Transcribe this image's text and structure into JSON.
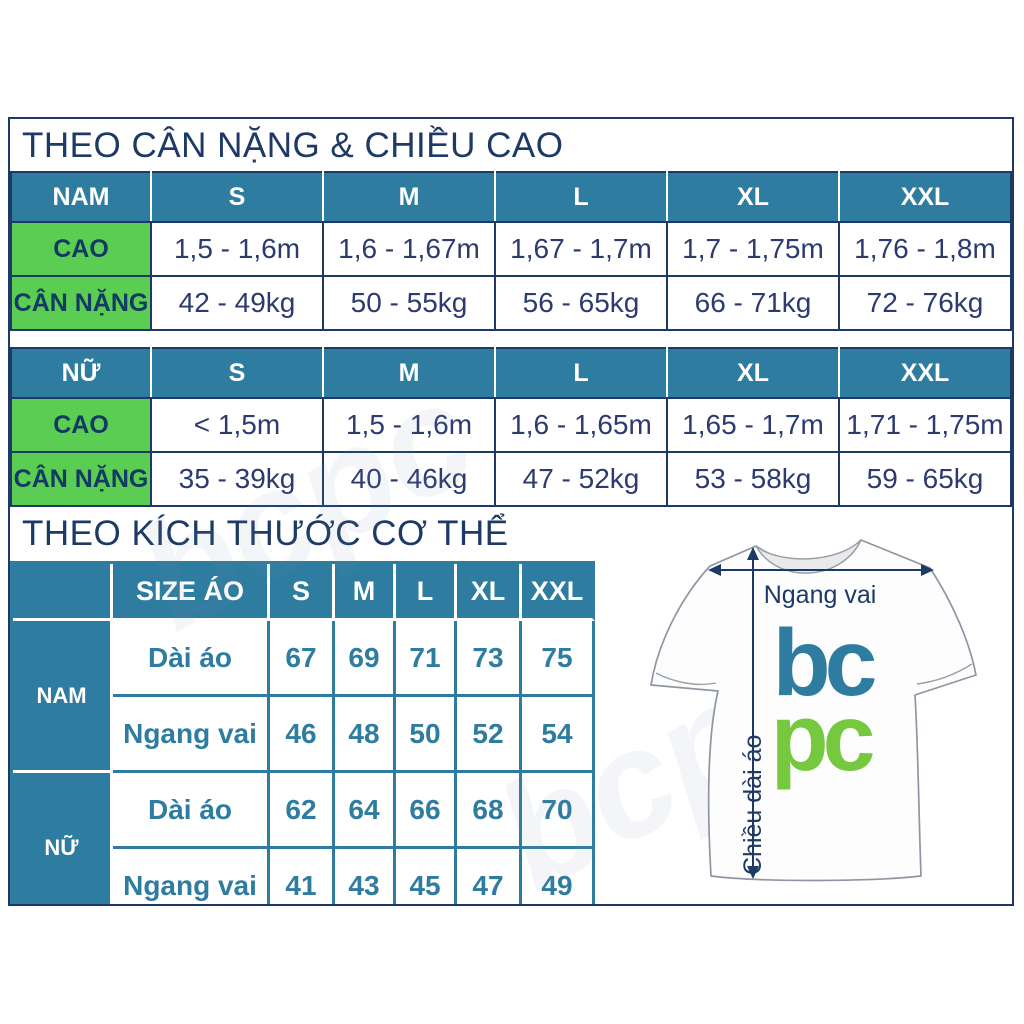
{
  "sections": {
    "by_weight_height_title": "THEO CÂN NẶNG & CHIỀU CAO",
    "by_body_size_title": "THEO KÍCH THƯỚC CƠ THỂ"
  },
  "weight_height_tables": [
    {
      "group_label": "NAM",
      "sizes": [
        "S",
        "M",
        "L",
        "XL",
        "XXL"
      ],
      "rows": [
        {
          "label": "CAO",
          "values": [
            "1,5 - 1,6m",
            "1,6 - 1,67m",
            "1,67 - 1,7m",
            "1,7 - 1,75m",
            "1,76 - 1,8m"
          ]
        },
        {
          "label": "CÂN NẶNG",
          "values": [
            "42 - 49kg",
            "50 - 55kg",
            "56 - 65kg",
            "66 - 71kg",
            "72 - 76kg"
          ]
        }
      ]
    },
    {
      "group_label": "NỮ",
      "sizes": [
        "S",
        "M",
        "L",
        "XL",
        "XXL"
      ],
      "rows": [
        {
          "label": "CAO",
          "values": [
            "< 1,5m",
            "1,5 - 1,6m",
            "1,6 - 1,65m",
            "1,65 - 1,7m",
            "1,71 - 1,75m"
          ]
        },
        {
          "label": "CÂN NẶNG",
          "values": [
            "35 - 39kg",
            "40 - 46kg",
            "47 - 52kg",
            "53 - 58kg",
            "59 - 65kg"
          ]
        }
      ]
    }
  ],
  "body_size_table": {
    "size_column_header": "SIZE ÁO",
    "sizes": [
      "S",
      "M",
      "L",
      "XL",
      "XXL"
    ],
    "groups": [
      {
        "label": "NAM",
        "rows": [
          {
            "label": "Dài áo",
            "values": [
              "67",
              "69",
              "71",
              "73",
              "75"
            ]
          },
          {
            "label": "Ngang vai",
            "values": [
              "46",
              "48",
              "50",
              "52",
              "54"
            ]
          }
        ]
      },
      {
        "label": "NỮ",
        "rows": [
          {
            "label": "Dài áo",
            "values": [
              "62",
              "64",
              "66",
              "68",
              "70"
            ]
          },
          {
            "label": "Ngang vai",
            "values": [
              "41",
              "43",
              "45",
              "47",
              "49"
            ]
          }
        ]
      }
    ]
  },
  "diagram": {
    "shoulder_width_label": "Ngang vai",
    "shirt_length_label": "Chiều dài áo",
    "logo_top": "bc",
    "logo_bottom": "pc"
  },
  "watermark_text": "bcpc",
  "colors": {
    "navy": "#1d3a67",
    "teal": "#2e7ca0",
    "green_highlight": "#5bcd52",
    "value_text": "#2c3a70",
    "logo_teal": "#2e7ca0",
    "logo_green": "#76c83e"
  }
}
